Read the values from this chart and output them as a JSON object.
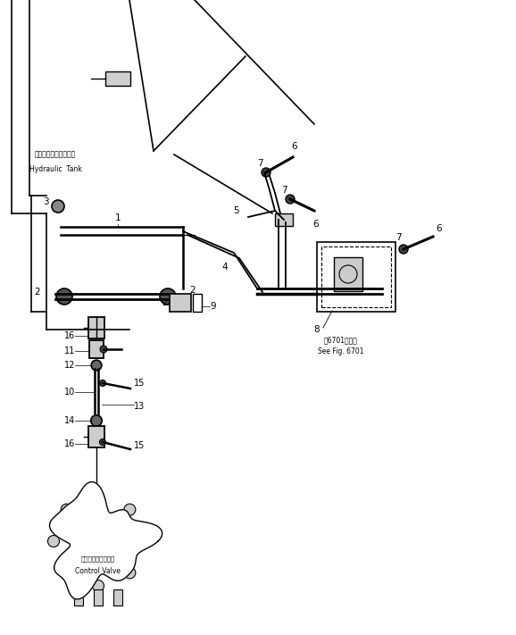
{
  "bg_color": "#ffffff",
  "line_color": "#000000",
  "fig_width": 5.78,
  "fig_height": 7.11,
  "dpi": 100,
  "labels": {
    "hydraulic_tank_jp": "ハイドロリックタンク",
    "hydraulic_tank_en": "Hydraulic  Tank",
    "control_valve_jp": "コントロールバルブ",
    "control_valve_en": "Control Valve",
    "see_fig_jp": "囶6701図参照",
    "see_fig_en": "See Fig. 6701"
  }
}
